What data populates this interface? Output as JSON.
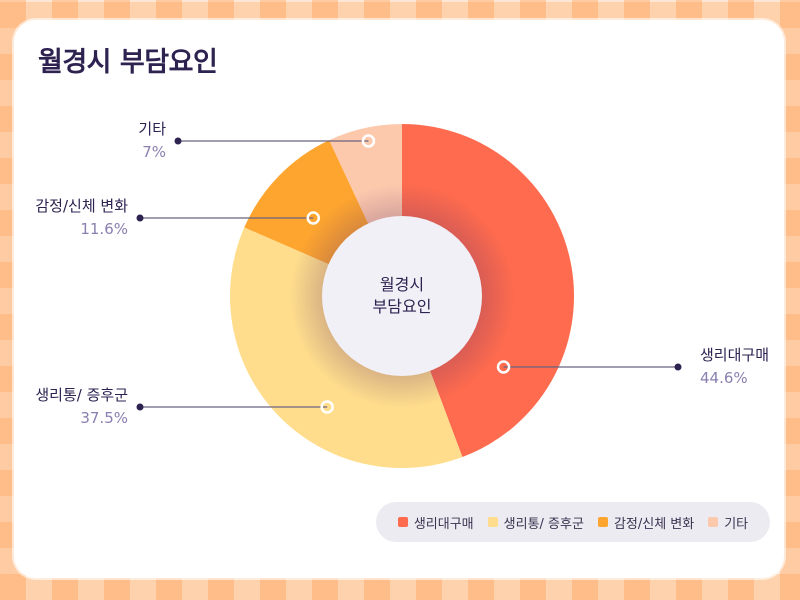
{
  "title": "월경시 부담요인",
  "chart_data": {
    "type": "donut",
    "title": "월경시 부담요인",
    "center_label": [
      "월경시",
      "부담요인"
    ],
    "unit": "%",
    "categories": [
      "생리대구매",
      "생리통/ 증후군",
      "감정/신체 변화",
      "기타"
    ],
    "values": [
      44.6,
      37.5,
      11.6,
      7
    ],
    "value_labels": [
      "44.6%",
      "37.5%",
      "11.6%",
      "7%"
    ],
    "colors": [
      "#fe6b4e",
      "#ffdd8c",
      "#fea52f",
      "#fdc9ad"
    ],
    "legend_position": "bottom-right"
  },
  "legend": [
    {
      "label": "생리대구매",
      "color": "#fe6b4e"
    },
    {
      "label": "생리통/ 증후군",
      "color": "#ffdd8c"
    },
    {
      "label": "감정/신체 변화",
      "color": "#fea52f"
    },
    {
      "label": "기타",
      "color": "#fdc9ad"
    }
  ]
}
